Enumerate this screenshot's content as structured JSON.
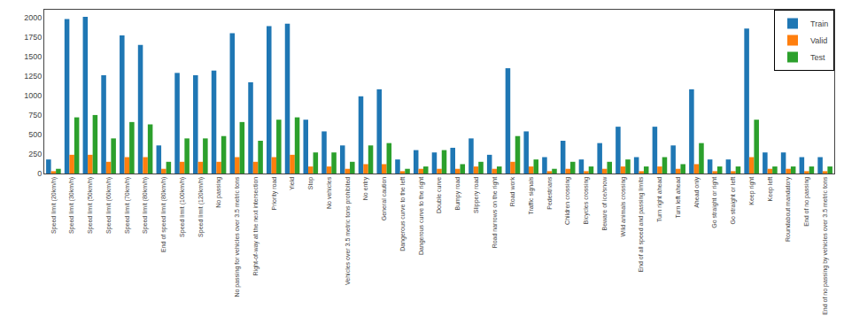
{
  "chart_data": {
    "type": "bar",
    "categories": [
      "Speed limit (20km/h)",
      "Speed limit (30km/h)",
      "Speed limit (50km/h)",
      "Speed limit (60km/h)",
      "Speed limit (70km/h)",
      "Speed limit (80km/h)",
      "End of speed limit (80km/h)",
      "Speed limit (100km/h)",
      "Speed limit (120km/h)",
      "No passing",
      "No passing for vehicles over 3.5 metric tons",
      "Right-of-way at the next intersection",
      "Priority road",
      "Yield",
      "Stop",
      "No vehicles",
      "Vehicles over 3.5 metric tons prohibited",
      "No entry",
      "General caution",
      "Dangerous curve to the left",
      "Dangerous curve to the right",
      "Double curve",
      "Bumpy road",
      "Slippery road",
      "Road narrows on the right",
      "Road work",
      "Traffic signals",
      "Pedestrians",
      "Children crossing",
      "Bicycles crossing",
      "Beware of ice/snow",
      "Wild animals crossing",
      "End of all speed and passing limits",
      "Turn right ahead",
      "Turn left ahead",
      "Ahead only",
      "Go straight or right",
      "Go straight or left",
      "Keep right",
      "Keep left",
      "Roundabout mandatory",
      "End of no passing",
      "End of no passing by vehicles over 3.5 metric tons"
    ],
    "series": [
      {
        "name": "Train",
        "color": "#1f77b4",
        "values": [
          180,
          1980,
          2010,
          1260,
          1770,
          1650,
          360,
          1290,
          1260,
          1320,
          1800,
          1170,
          1890,
          1920,
          690,
          540,
          360,
          990,
          1080,
          180,
          300,
          270,
          330,
          450,
          240,
          1350,
          540,
          210,
          420,
          180,
          390,
          600,
          210,
          600,
          360,
          1080,
          180,
          180,
          1860,
          270,
          270,
          210,
          210
        ]
      },
      {
        "name": "Valid",
        "color": "#ff7f0e",
        "values": [
          30,
          240,
          240,
          150,
          210,
          210,
          60,
          150,
          150,
          150,
          210,
          150,
          210,
          240,
          90,
          90,
          60,
          120,
          120,
          30,
          60,
          60,
          60,
          90,
          60,
          150,
          90,
          30,
          60,
          30,
          60,
          90,
          30,
          90,
          60,
          120,
          30,
          30,
          210,
          60,
          60,
          30,
          30
        ]
      },
      {
        "name": "Test",
        "color": "#2ca02c",
        "values": [
          60,
          720,
          750,
          450,
          660,
          630,
          150,
          450,
          450,
          480,
          660,
          420,
          690,
          720,
          270,
          270,
          150,
          360,
          390,
          60,
          90,
          300,
          120,
          150,
          90,
          480,
          180,
          60,
          150,
          90,
          150,
          180,
          90,
          210,
          120,
          390,
          90,
          90,
          690,
          90,
          90,
          90,
          90
        ]
      }
    ],
    "ylim": [
      0,
      2100
    ],
    "yticks": [
      0,
      250,
      500,
      750,
      1000,
      1250,
      1500,
      1750,
      2000
    ],
    "grid": false,
    "legend": "upper right"
  }
}
